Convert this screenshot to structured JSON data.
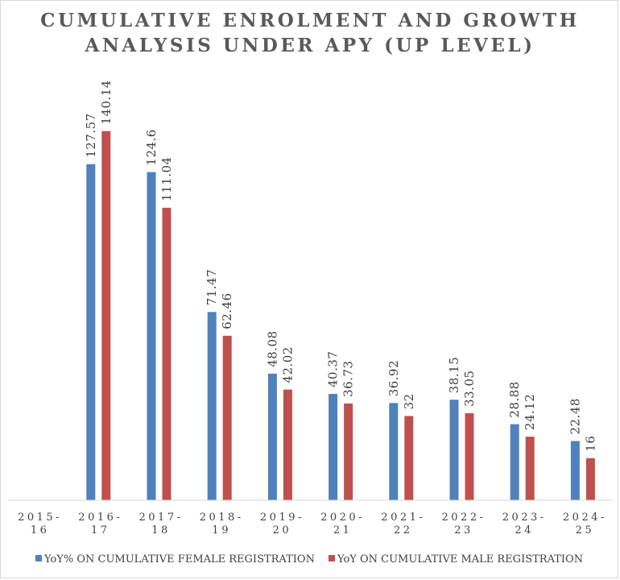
{
  "chart_data": {
    "type": "bar",
    "title_lines": [
      "CUMULATIVE ENROLMENT AND GROWTH",
      "ANALYSIS UNDER APY (UP LEVEL)"
    ],
    "categories": [
      [
        "2015-",
        "16"
      ],
      [
        "2016-",
        "17"
      ],
      [
        "2017-",
        "18"
      ],
      [
        "2018-",
        "19"
      ],
      [
        "2019-",
        "20"
      ],
      [
        "2020-",
        "21"
      ],
      [
        "2021-",
        "22"
      ],
      [
        "2022-",
        "23"
      ],
      [
        "2023-",
        "24"
      ],
      [
        "2024-",
        "25"
      ]
    ],
    "series": [
      {
        "name": "YoY% ON CUMULATIVE FEMALE REGISTRATION",
        "color": "#4f81bd",
        "values": [
          null,
          127.57,
          124.6,
          71.47,
          48.08,
          40.37,
          36.92,
          38.15,
          28.88,
          22.48
        ],
        "labels": [
          "",
          "127.57",
          "124.6",
          "71.47",
          "48.08",
          "40.37",
          "36.92",
          "38.15",
          "28.88",
          "22.48"
        ]
      },
      {
        "name": "YoY ON CUMULATIVE MALE REGISTRATION",
        "color": "#c0504d",
        "values": [
          null,
          140.14,
          111.04,
          62.46,
          42.02,
          36.73,
          32,
          33.05,
          24.12,
          16
        ],
        "labels": [
          "",
          "140.14",
          "111.04",
          "62.46",
          "42.02",
          "36.73",
          "32",
          "33.05",
          "24.12",
          "16"
        ]
      }
    ],
    "ylim": [
      0,
      150
    ],
    "grid": false,
    "legend": "bottom"
  }
}
